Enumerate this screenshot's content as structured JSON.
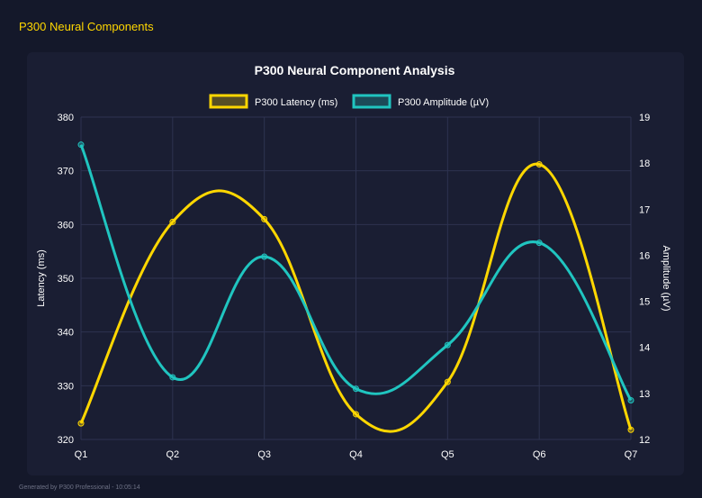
{
  "page_title": "P300 Neural Components",
  "footer": "Generated by P300 Professional - 10:05:14",
  "chart_data": {
    "type": "line",
    "title": "P300 Neural Component Analysis",
    "categories": [
      "Q1",
      "Q2",
      "Q3",
      "Q4",
      "Q5",
      "Q6",
      "Q7"
    ],
    "series": [
      {
        "name": "P300 Latency (ms)",
        "axis": "left",
        "color": "#ffd700",
        "values": [
          323,
          360.5,
          361,
          324.7,
          330.7,
          371.2,
          321.8
        ]
      },
      {
        "name": "P300 Amplitude (µV)",
        "axis": "right",
        "color": "#20c5c0",
        "values": [
          18.4,
          13.35,
          15.97,
          13.1,
          14.05,
          16.27,
          12.85
        ]
      }
    ],
    "ylabel": "Latency (ms)",
    "y2label": "Amplitude (µV)",
    "ylim": [
      320,
      380
    ],
    "yticks": [
      "320",
      "330",
      "340",
      "350",
      "360",
      "370",
      "380"
    ],
    "y2lim": [
      12,
      19
    ],
    "y2ticks": [
      "12",
      "13",
      "14",
      "15",
      "16",
      "17",
      "18",
      "19"
    ],
    "grid": true,
    "legend": "top"
  }
}
